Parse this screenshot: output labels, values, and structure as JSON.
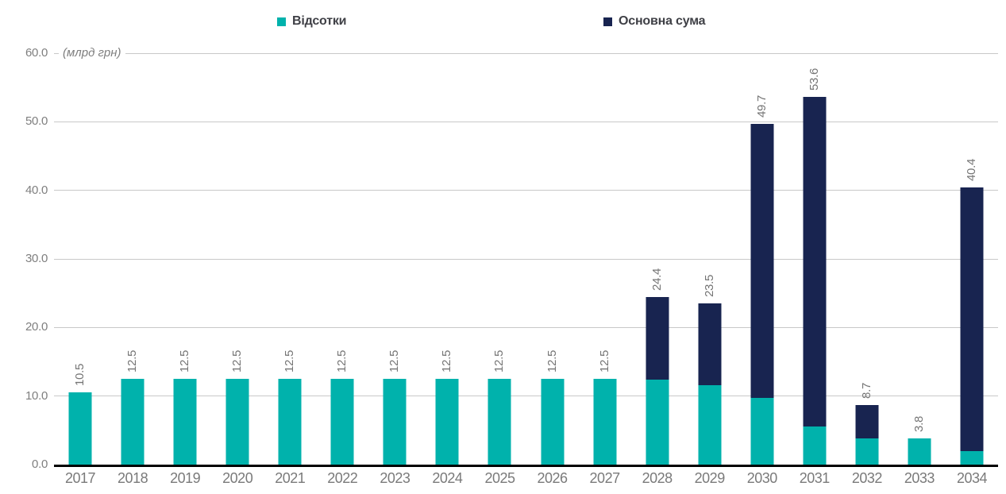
{
  "chart_data": {
    "type": "bar",
    "stacked": true,
    "title": "",
    "unit_label": "(млрд грн)",
    "categories": [
      "2017",
      "2018",
      "2019",
      "2020",
      "2021",
      "2022",
      "2023",
      "2024",
      "2025",
      "2026",
      "2027",
      "2028",
      "2029",
      "2030",
      "2031",
      "2032",
      "2033",
      "2034"
    ],
    "series": [
      {
        "name": "Відсотки",
        "color": "#00b2ac",
        "values": [
          10.5,
          12.5,
          12.5,
          12.5,
          12.5,
          12.5,
          12.5,
          12.5,
          12.5,
          12.5,
          12.5,
          12.4,
          11.6,
          9.7,
          5.6,
          3.8,
          3.8,
          2.0
        ]
      },
      {
        "name": "Основна сума",
        "color": "#182450",
        "values": [
          0,
          0,
          0,
          0,
          0,
          0,
          0,
          0,
          0,
          0,
          0,
          12.0,
          11.9,
          40.0,
          48.0,
          4.9,
          0,
          38.4
        ]
      }
    ],
    "bar_total_labels": [
      "10.5",
      "12.5",
      "12.5",
      "12.5",
      "12.5",
      "12.5",
      "12.5",
      "12.5",
      "12.5",
      "12.5",
      "12.5",
      "24.4",
      "23.5",
      "49.7",
      "53.6",
      "8.7",
      "3.8",
      "40.4"
    ],
    "ylim": [
      0,
      60
    ],
    "yticks": [
      0,
      10,
      20,
      30,
      40,
      50,
      60
    ],
    "ytick_labels": [
      "0.0",
      "10.0",
      "20.0",
      "30.0",
      "40.0",
      "50.0",
      "60.0"
    ],
    "grid": true,
    "legend_position": "top",
    "colors": {
      "grid": "#c8c8c8",
      "axis_line": "#000000",
      "tick_text": "#7f7f7f",
      "bar_label_text": "#757575",
      "legend_text": "#3f4046",
      "background": "#ffffff"
    }
  }
}
